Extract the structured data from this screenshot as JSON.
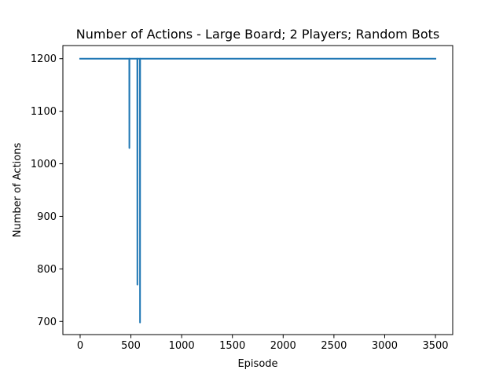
{
  "chart_data": {
    "type": "line",
    "title": "Number of Actions - Large Board; 2 Players; Random Bots",
    "xlabel": "Episode",
    "ylabel": "Number of Actions",
    "xlim": [
      -170,
      3670
    ],
    "ylim": [
      675,
      1225
    ],
    "xticks": [
      0,
      500,
      1000,
      1500,
      2000,
      2500,
      3000,
      3500
    ],
    "yticks": [
      700,
      800,
      900,
      1000,
      1100,
      1200
    ],
    "grid": false,
    "legend": "none",
    "series": [
      {
        "color": "#1f77b4",
        "x": [
          0,
          484,
          485,
          486,
          487,
          563,
          564,
          565,
          566,
          589,
          590,
          591,
          592,
          3500
        ],
        "y": [
          1200,
          1200,
          1030,
          1200,
          1200,
          1200,
          770,
          1200,
          1200,
          1200,
          698,
          1200,
          1200,
          1200
        ]
      }
    ]
  }
}
